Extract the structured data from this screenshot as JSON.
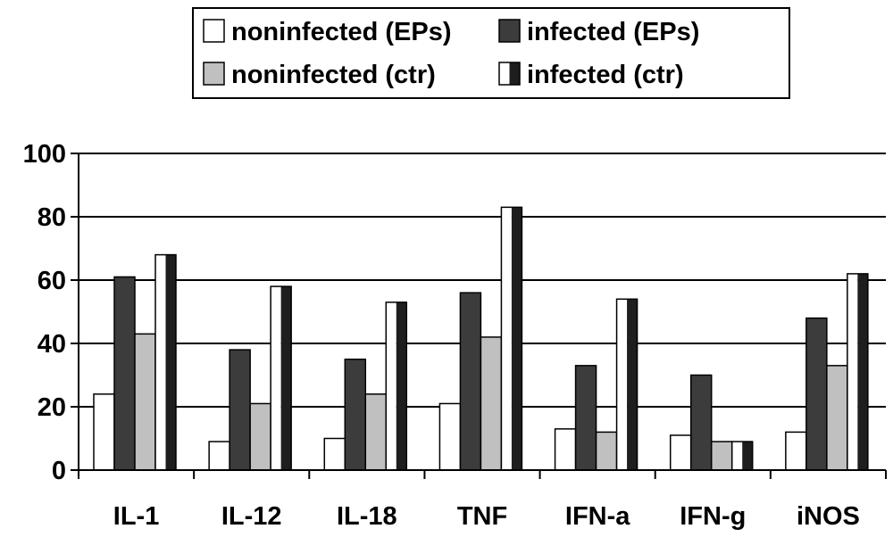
{
  "chart_data": {
    "type": "bar",
    "title": "",
    "xlabel": "",
    "ylabel": "",
    "ylim": [
      0,
      100
    ],
    "yticks": [
      0,
      20,
      40,
      60,
      80,
      100
    ],
    "grid": true,
    "legend_position": "top-center",
    "categories": [
      "IL-1",
      "IL-12",
      "IL-18",
      "TNF",
      "IFN-a",
      "IFN-g",
      "iNOS"
    ],
    "series": [
      {
        "name": "noninfected (EPs)",
        "fill": "#ffffff",
        "pattern": "solid",
        "values": [
          24,
          9,
          10,
          21,
          13,
          11,
          12
        ]
      },
      {
        "name": "infected (EPs)",
        "fill": "#3c3c3c",
        "pattern": "solid",
        "values": [
          61,
          38,
          35,
          56,
          33,
          30,
          48
        ]
      },
      {
        "name": "noninfected (ctr)",
        "fill": "#c0c0c0",
        "pattern": "solid",
        "values": [
          43,
          21,
          24,
          42,
          12,
          9,
          33
        ]
      },
      {
        "name": "infected (ctr)",
        "fill": "#1e1e1e",
        "pattern": "half",
        "values": [
          68,
          58,
          53,
          83,
          54,
          9,
          62
        ]
      }
    ]
  }
}
